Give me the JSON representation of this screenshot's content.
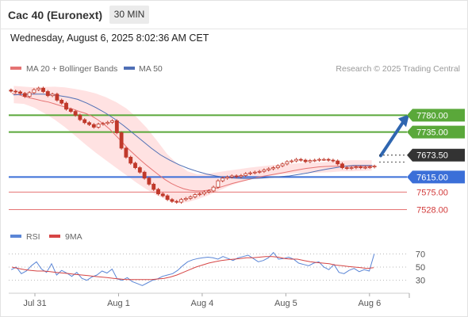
{
  "header": {
    "title": "Cac 40 (Euronext)",
    "timeframe": "30 MIN"
  },
  "timestamp": "Wednesday, August 6, 2025 8:02:36 AM CET",
  "legend": {
    "ma20": "MA 20 + Bollinger Bands",
    "ma50": "MA 50",
    "credit": "Research © 2025 Trading Central"
  },
  "rsi_legend": {
    "rsi": "RSI",
    "ma9": "9MA"
  },
  "colors": {
    "candle": "#c0392b",
    "ma20": "#e57373",
    "ma50": "#4f6fb5",
    "band": "#ffd8d8",
    "resistance": "#5aa83a",
    "support": "#3b6fd8",
    "support_minor": "#e57373",
    "arrow": "#2f66b0",
    "rsi": "#5b86d6",
    "rsi_ma": "#d64545",
    "price_tag": "#333333"
  },
  "chart_data": [
    {
      "type": "candlestick",
      "title": "",
      "x_tick_labels": [
        "Jul 31",
        "Aug 1",
        "Aug 4",
        "Aug 5",
        "Aug 6"
      ],
      "ylim": [
        7470,
        7880
      ],
      "last_price": 7673.5,
      "levels": [
        {
          "label": "7780.00",
          "value": 7780,
          "kind": "resistance"
        },
        {
          "label": "7735.00",
          "value": 7735,
          "kind": "resistance"
        },
        {
          "label": "7615.00",
          "value": 7615,
          "kind": "support"
        },
        {
          "label": "7575.00",
          "value": 7575,
          "kind": "support_minor"
        },
        {
          "label": "7528.00",
          "value": 7528,
          "kind": "support_minor"
        }
      ],
      "last_price_label": "7673.50",
      "forecast_arrow": {
        "from": 7672,
        "to": 7780
      },
      "candles_close": [
        7844,
        7842,
        7838,
        7830,
        7840,
        7848,
        7852,
        7843,
        7832,
        7836,
        7820,
        7812,
        7796,
        7790,
        7780,
        7768,
        7760,
        7755,
        7748,
        7756,
        7758,
        7761,
        7765,
        7733,
        7692,
        7668,
        7652,
        7640,
        7628,
        7612,
        7596,
        7582,
        7570,
        7565,
        7555,
        7550,
        7548,
        7555,
        7558,
        7562,
        7568,
        7570,
        7575,
        7578,
        7588,
        7605,
        7612,
        7615,
        7618,
        7616,
        7619,
        7624,
        7626,
        7628,
        7630,
        7634,
        7637,
        7640,
        7645,
        7650,
        7656,
        7658,
        7662,
        7660,
        7656,
        7659,
        7660,
        7662,
        7662,
        7660,
        7658,
        7650,
        7640,
        7638,
        7640,
        7642,
        7640,
        7641,
        7642,
        7644
      ],
      "ma20": [
        7838,
        7835,
        7830,
        7826,
        7822,
        7818,
        7815,
        7810,
        7805,
        7800,
        7796,
        7790,
        7785,
        7778,
        7768,
        7756,
        7742,
        7725,
        7708,
        7690,
        7675,
        7660,
        7646,
        7633,
        7620,
        7608,
        7598,
        7590,
        7584,
        7580,
        7578,
        7578,
        7580,
        7584,
        7588,
        7593,
        7598,
        7602,
        7606,
        7610,
        7614,
        7617,
        7620,
        7623,
        7626,
        7629,
        7632,
        7635,
        7638,
        7640,
        7642,
        7643,
        7644,
        7644,
        7644,
        7644,
        7644,
        7644,
        7644,
        7644
      ],
      "ma50": [
        7834,
        7835,
        7836,
        7836,
        7835,
        7832,
        7828,
        7822,
        7812,
        7800,
        7786,
        7770,
        7752,
        7732,
        7712,
        7692,
        7674,
        7660,
        7648,
        7638,
        7630,
        7623,
        7618,
        7614,
        7612,
        7611,
        7611,
        7612,
        7614,
        7616,
        7618,
        7622,
        7626,
        7631,
        7636,
        7640,
        7644,
        7646,
        7646,
        7646
      ],
      "bb_upper": [
        7858,
        7856,
        7854,
        7855,
        7856,
        7854,
        7850,
        7845,
        7838,
        7828,
        7815,
        7798,
        7775,
        7746,
        7712,
        7676,
        7650,
        7630,
        7622,
        7624,
        7628,
        7632,
        7636,
        7640,
        7643,
        7646,
        7648,
        7650,
        7652,
        7653,
        7654,
        7656,
        7658,
        7660,
        7660,
        7660
      ],
      "bb_lower": [
        7812,
        7810,
        7800,
        7785,
        7768,
        7748,
        7725,
        7702,
        7680,
        7660,
        7640,
        7620,
        7600,
        7582,
        7566,
        7554,
        7546,
        7548,
        7556,
        7566,
        7578,
        7590,
        7600,
        7608,
        7614,
        7618,
        7622,
        7624,
        7626,
        7626,
        7627,
        7628,
        7630,
        7630,
        7631,
        7632
      ]
    },
    {
      "type": "line",
      "title": "RSI",
      "ylim": [
        20,
        80
      ],
      "y_tick_labels": [
        "70",
        "50",
        "30"
      ],
      "y_ticks": [
        70,
        50,
        30
      ],
      "series": [
        {
          "name": "RSI",
          "values": [
            46,
            50,
            40,
            44,
            52,
            58,
            47,
            42,
            55,
            38,
            45,
            41,
            36,
            42,
            33,
            30,
            35,
            38,
            44,
            41,
            47,
            32,
            30,
            34,
            28,
            25,
            22,
            26,
            30,
            32,
            36,
            38,
            40,
            45,
            52,
            58,
            61,
            63,
            64,
            65,
            64,
            62,
            66,
            63,
            60,
            64,
            66,
            68,
            63,
            58,
            60,
            64,
            72,
            62,
            63,
            65,
            62,
            56,
            54,
            52,
            56,
            58,
            50,
            46,
            54,
            42,
            40,
            45,
            48,
            43,
            46,
            44,
            70
          ]
        },
        {
          "name": "9MA",
          "values": [
            50,
            48,
            46,
            45,
            44,
            44,
            43,
            42,
            41,
            40,
            39,
            38,
            37,
            36,
            35,
            34,
            33,
            32,
            31,
            31,
            31,
            31,
            31,
            32,
            33,
            35,
            38,
            42,
            46,
            50,
            53,
            56,
            58,
            60,
            61,
            62,
            63,
            64,
            64,
            65,
            66,
            66,
            65,
            63,
            62,
            62,
            60,
            58,
            57,
            56,
            55,
            53,
            52,
            51,
            50,
            49,
            48,
            49
          ]
        }
      ]
    }
  ]
}
